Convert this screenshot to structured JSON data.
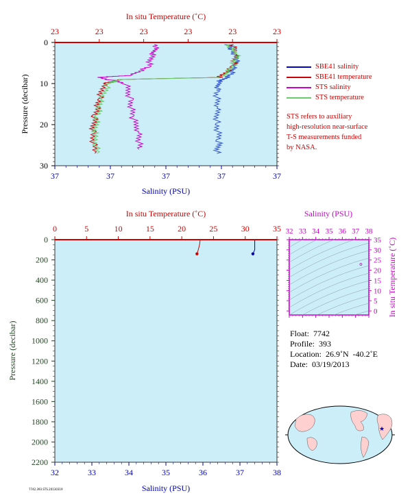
{
  "top_chart": {
    "x_label_top": "In situ Temperature (˚C)",
    "x_label_bottom": "Salinity (PSU)",
    "y_label": "Pressure (decibar)",
    "temp_ticks": [
      "23",
      "23",
      "23",
      "23",
      "23",
      "23"
    ],
    "sal_ticks": [
      "37",
      "37",
      "37",
      "37",
      "37"
    ],
    "y_ticks": [
      "0",
      "10",
      "20",
      "30"
    ]
  },
  "legend": [
    {
      "label": "SBE41 salinity",
      "color": "#0000cc"
    },
    {
      "label": "SBE41 temperature",
      "color": "#cc0000"
    },
    {
      "label": "STS salinity",
      "color": "#cc00cc"
    },
    {
      "label": "STS temperature",
      "color": "#55cc55"
    }
  ],
  "note": [
    "STS refers to auxiliary",
    "high-resolution near-surface",
    "T-S measurements funded",
    "by NASA."
  ],
  "bottom_chart": {
    "x_label_top": "In situ Temperature (˚C)",
    "x_label_bottom": "Salinity (PSU)",
    "y_label": "Pressure (decibar)",
    "temp_ticks": [
      "0",
      "5",
      "10",
      "15",
      "20",
      "25",
      "30",
      "35"
    ],
    "sal_ticks": [
      "32",
      "33",
      "34",
      "35",
      "36",
      "37",
      "38"
    ],
    "y_ticks": [
      "0",
      "200",
      "400",
      "600",
      "800",
      "1000",
      "1200",
      "1400",
      "1600",
      "1800",
      "2000",
      "2200"
    ]
  },
  "ts_chart": {
    "x_label": "Salinity (PSU)",
    "y_label": "In situ Temperature (˚C)",
    "sal_ticks": [
      "32",
      "33",
      "34",
      "35",
      "36",
      "37",
      "38"
    ],
    "temp_ticks": [
      "0",
      "5",
      "10",
      "15",
      "20",
      "25",
      "30",
      "35"
    ]
  },
  "info": {
    "float": "Float:  7742",
    "profile": "Profile:  393",
    "location": "Location:  26.9˚N  -40.2˚E",
    "date": "Date:  03/19/2013"
  },
  "footer_code": "7742.393.STS.20130319",
  "colors": {
    "plot_bg": "#cceef8",
    "temp": "#cc0000",
    "sal": "#0000aa",
    "sts_sal": "#cc00cc",
    "sts_temp": "#66cc66",
    "axis_green": "#224422",
    "magenta": "#cc00cc"
  },
  "chart_data": [
    {
      "type": "line",
      "title": "",
      "xlabel": "Salinity (PSU)",
      "ylabel": "Pressure (decibar)",
      "ylim": [
        30,
        0
      ],
      "series": [
        {
          "name": "SBE41 salinity",
          "x_units": "relative",
          "points": [
            [
              0.78,
              0.5
            ],
            [
              0.8,
              2
            ],
            [
              0.82,
              4
            ],
            [
              0.81,
              6
            ],
            [
              0.79,
              8
            ],
            [
              0.74,
              9.5
            ],
            [
              0.73,
              12
            ],
            [
              0.73,
              16
            ],
            [
              0.73,
              20
            ],
            [
              0.74,
              24
            ],
            [
              0.73,
              27
            ]
          ]
        },
        {
          "name": "SBE41 temperature",
          "x_units": "relative",
          "points": [
            [
              0.8,
              0.5
            ],
            [
              0.82,
              3
            ],
            [
              0.8,
              6
            ],
            [
              0.74,
              8.5
            ],
            [
              0.3,
              9
            ],
            [
              0.22,
              10
            ],
            [
              0.2,
              14
            ],
            [
              0.18,
              18
            ],
            [
              0.17,
              22
            ],
            [
              0.18,
              27
            ]
          ]
        },
        {
          "name": "STS salinity",
          "x_units": "relative",
          "points": [
            [
              0.46,
              0.5
            ],
            [
              0.44,
              3
            ],
            [
              0.42,
              6
            ],
            [
              0.34,
              8
            ],
            [
              0.2,
              8.5
            ],
            [
              0.32,
              10
            ],
            [
              0.34,
              14
            ],
            [
              0.35,
              18
            ],
            [
              0.38,
              22
            ],
            [
              0.38,
              26
            ]
          ]
        },
        {
          "name": "STS temperature",
          "x_units": "relative",
          "points": [
            [
              0.78,
              0.5
            ],
            [
              0.82,
              3
            ],
            [
              0.8,
              6
            ],
            [
              0.75,
              8.5
            ],
            [
              0.3,
              9
            ],
            [
              0.24,
              10
            ],
            [
              0.21,
              14
            ],
            [
              0.19,
              18
            ],
            [
              0.18,
              22
            ],
            [
              0.19,
              27
            ]
          ]
        }
      ]
    },
    {
      "type": "line",
      "title": "",
      "xlabel": "Salinity (PSU)",
      "ylabel": "Pressure (decibar)",
      "ylim": [
        2200,
        0
      ],
      "temp_xlim": [
        0,
        35
      ],
      "sal_xlim": [
        32,
        38
      ],
      "series": [
        {
          "name": "temperature",
          "points": [
            [
              22.9,
              0
            ],
            [
              22.8,
              50
            ],
            [
              22.6,
              100
            ],
            [
              22.4,
              140
            ]
          ]
        },
        {
          "name": "salinity",
          "points": [
            [
              37.4,
              0
            ],
            [
              37.4,
              50
            ],
            [
              37.4,
              100
            ],
            [
              37.35,
              140
            ]
          ]
        }
      ]
    },
    {
      "type": "scatter",
      "title": "",
      "xlabel": "Salinity (PSU)",
      "ylabel": "In situ Temperature (˚C)",
      "xlim": [
        32,
        38
      ],
      "ylim": [
        -2,
        35
      ],
      "series": [
        {
          "name": "T-S",
          "points": [
            [
              37.4,
              22.9
            ]
          ]
        }
      ]
    }
  ]
}
